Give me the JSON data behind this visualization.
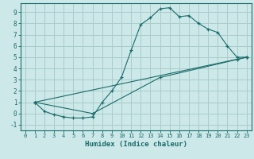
{
  "xlabel": "Humidex (Indice chaleur)",
  "ylabel": "",
  "bg_color": "#cce8e8",
  "grid_color": "#aacccc",
  "line_color": "#1a6b6b",
  "xlim": [
    -0.5,
    23.5
  ],
  "ylim": [
    -1.5,
    9.8
  ],
  "xticks": [
    0,
    1,
    2,
    3,
    4,
    5,
    6,
    7,
    8,
    9,
    10,
    11,
    12,
    13,
    14,
    15,
    16,
    17,
    18,
    19,
    20,
    21,
    22,
    23
  ],
  "yticks": [
    -1,
    0,
    1,
    2,
    3,
    4,
    5,
    6,
    7,
    8,
    9
  ],
  "line1_x": [
    1,
    2,
    3,
    4,
    5,
    6,
    7,
    8,
    9,
    10,
    11,
    12,
    13,
    14,
    15,
    16,
    17,
    18,
    19,
    20,
    21,
    22,
    23
  ],
  "line1_y": [
    1.0,
    0.2,
    -0.1,
    -0.3,
    -0.4,
    -0.4,
    -0.3,
    1.0,
    2.0,
    3.2,
    5.6,
    7.9,
    8.5,
    9.3,
    9.4,
    8.6,
    8.7,
    8.0,
    7.5,
    7.2,
    6.0,
    5.0,
    5.0
  ],
  "line2_x": [
    1,
    23
  ],
  "line2_y": [
    1.0,
    5.0
  ],
  "line3_x": [
    1,
    7,
    14,
    22,
    23
  ],
  "line3_y": [
    1.0,
    0.0,
    3.2,
    4.8,
    5.0
  ]
}
